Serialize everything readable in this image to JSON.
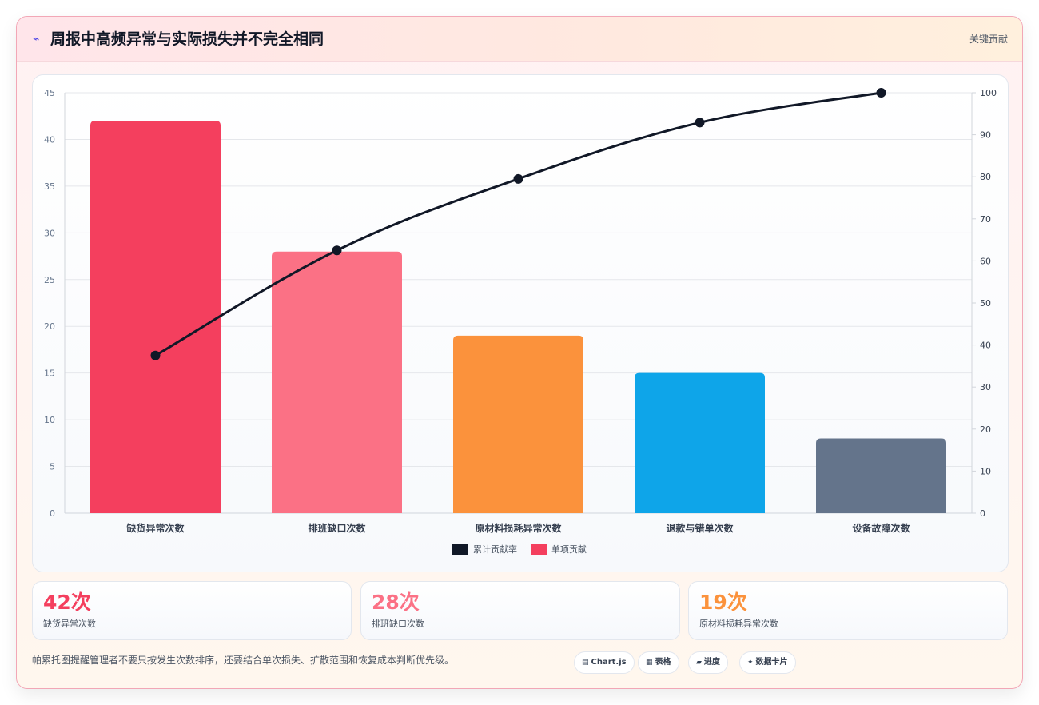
{
  "header": {
    "icon": "lightning-icon",
    "title": "周报中高频异常与实际损失并不完全相同",
    "tag": "关键贡献"
  },
  "chart_data": {
    "type": "bar",
    "categories": [
      "缺货异常次数",
      "排班缺口次数",
      "原材料损耗异常次数",
      "退款与错单次数",
      "设备故障次数"
    ],
    "series": [
      {
        "name": "单项贡献",
        "type": "bar",
        "values": [
          42,
          28,
          19,
          15,
          8
        ],
        "colors": [
          "#f43f5e",
          "#fb7185",
          "#fb923c",
          "#0ea5e9",
          "#64748b"
        ]
      },
      {
        "name": "累计贡献率",
        "type": "line",
        "axis": "right",
        "values": [
          37.5,
          62.5,
          79.5,
          92.9,
          100
        ],
        "color": "#111827"
      }
    ],
    "y_left": {
      "min": 0,
      "max": 45,
      "ticks": [
        "0",
        "5",
        "10",
        "15",
        "20",
        "25",
        "30",
        "35",
        "40",
        "45"
      ]
    },
    "y_right": {
      "min": 0,
      "max": 100,
      "ticks": [
        "0",
        "10",
        "20",
        "30",
        "40",
        "50",
        "60",
        "70",
        "80",
        "90",
        "100"
      ]
    },
    "legend": {
      "position": "bottom",
      "items": [
        "累计贡献率",
        "单项贡献"
      ],
      "colors": [
        "#111827",
        "#f43f5e"
      ]
    },
    "grid": true
  },
  "stats": [
    {
      "value": "42次",
      "label": "缺货异常次数",
      "color": "#f43f5e"
    },
    {
      "value": "28次",
      "label": "排班缺口次数",
      "color": "#fb7185"
    },
    {
      "value": "19次",
      "label": "原材料损耗异常次数",
      "color": "#fb923c"
    }
  ],
  "footer": {
    "note": "帕累托图提醒管理者不要只按发生次数排序，还要结合单次损失、扩散范围和恢复成本判断优先级。",
    "chips": [
      {
        "icon": "chart-icon",
        "glyph": "▤",
        "label": "Chart.js"
      },
      {
        "icon": "table-icon",
        "glyph": "▦",
        "label": "表格"
      },
      {
        "icon": "progress-icon",
        "glyph": "▰",
        "label": "进度"
      },
      {
        "icon": "card-icon",
        "glyph": "✦",
        "label": "数据卡片"
      }
    ]
  }
}
